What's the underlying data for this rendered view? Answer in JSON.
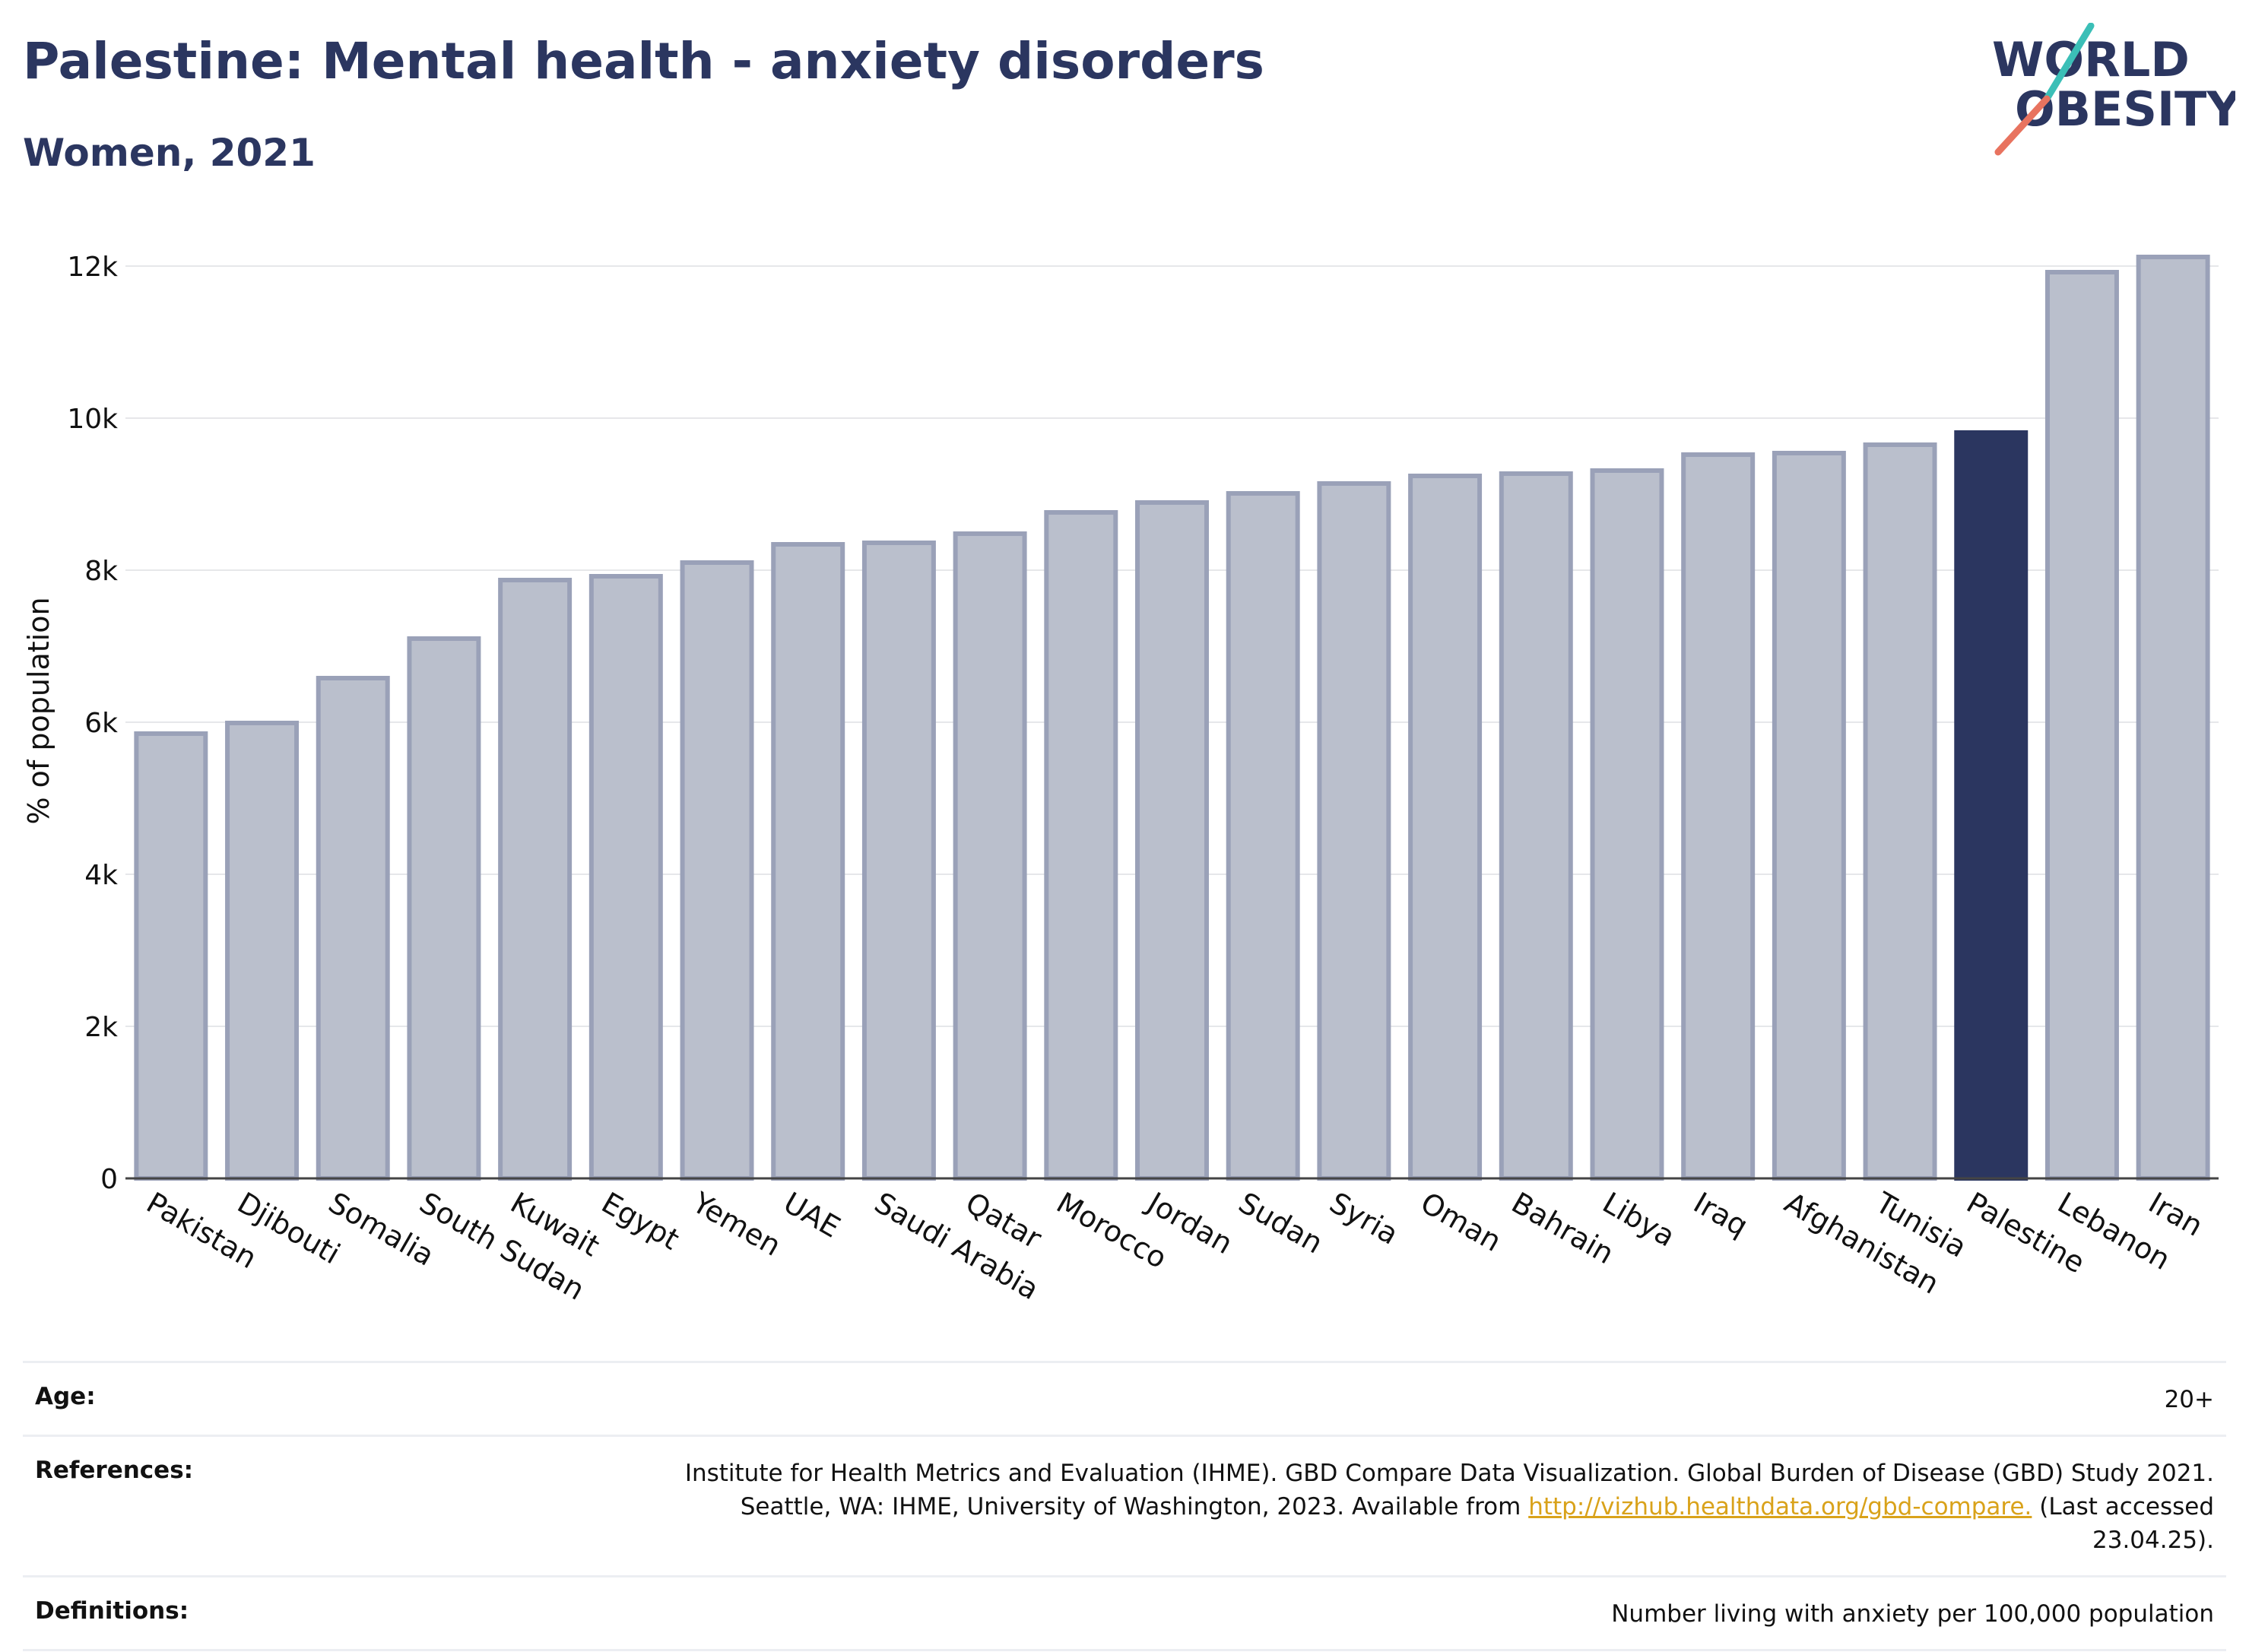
{
  "header": {
    "title": "Palestine: Mental health - anxiety disorders",
    "subtitle": "Women, 2021"
  },
  "logo": {
    "line1": "WORLD",
    "line2": "OBESITY"
  },
  "chart_data": {
    "type": "bar",
    "ylabel": "% of population",
    "xlabel": "",
    "ylim": [
      0,
      12500
    ],
    "yticks": [
      0,
      2000,
      4000,
      6000,
      8000,
      10000,
      12000
    ],
    "ytick_labels": [
      "0",
      "2k",
      "4k",
      "6k",
      "8k",
      "10k",
      "12k"
    ],
    "grid": true,
    "highlight": "Palestine",
    "colors": {
      "default_fill": "#babfcc",
      "default_stroke": "#9aa1b8",
      "highlight": "#2b3660"
    },
    "categories": [
      "Pakistan",
      "Djibouti",
      "Somalia",
      "South Sudan",
      "Kuwait",
      "Egypt",
      "Yemen",
      "UAE",
      "Saudi Arabia",
      "Qatar",
      "Morocco",
      "Jordan",
      "Sudan",
      "Syria",
      "Oman",
      "Bahrain",
      "Libya",
      "Iraq",
      "Afghanistan",
      "Tunisia",
      "Palestine",
      "Lebanon",
      "Iran"
    ],
    "values": [
      5850,
      5990,
      6580,
      7100,
      7870,
      7920,
      8100,
      8340,
      8360,
      8480,
      8760,
      8890,
      9010,
      9140,
      9240,
      9270,
      9310,
      9520,
      9540,
      9650,
      9810,
      11920,
      12120
    ]
  },
  "info": {
    "age_label": "Age:",
    "age_value": "20+",
    "references_label": "References:",
    "references_text1": "Institute for Health Metrics and Evaluation (IHME). GBD Compare Data Visualization. Global Burden of Disease (GBD) Study 2021. Seattle, WA: IHME, University of Washington, 2023. Available from ",
    "references_link": "http://vizhub.healthdata.org/gbd-compare.",
    "references_text2": " (Last accessed 23.04.25).",
    "definitions_label": "Definitions:",
    "definitions_value": "Number living with anxiety per 100,000 population"
  }
}
